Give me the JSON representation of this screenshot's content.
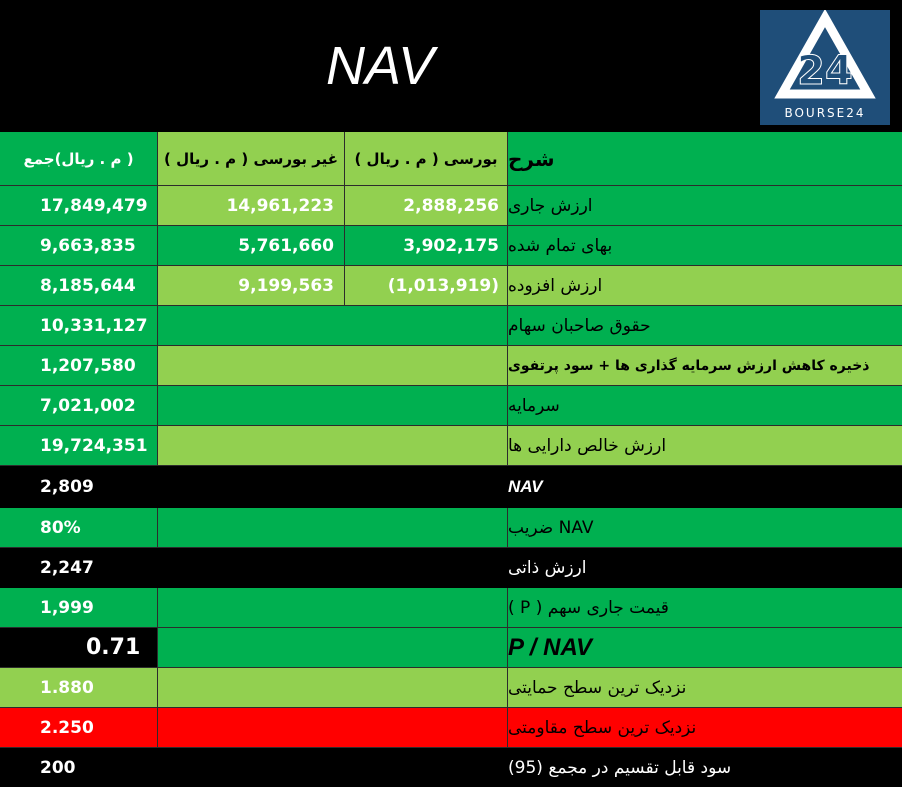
{
  "title": "NAV",
  "logo": {
    "text": "BOURSE24",
    "mark": "24"
  },
  "header": {
    "desc": "شرح",
    "bourse": "بورسی ( م . ریال )",
    "non_bourse": "غیر بورسی ( م . ریال )",
    "total": "( م . ریال)جمع"
  },
  "rows": [
    {
      "desc": "ارزش جاری",
      "bourse": "2,888,256",
      "non_bourse": "14,961,223",
      "total": "17,849,479"
    },
    {
      "desc": "بهای تمام شده",
      "bourse": "3,902,175",
      "non_bourse": "5,761,660",
      "total": "9,663,835"
    },
    {
      "desc": "ارزش افزوده",
      "bourse": "(1,013,919)",
      "non_bourse": "9,199,563",
      "total": "8,185,644"
    },
    {
      "desc": "حقوق صاحبان سهام",
      "total": "10,331,127"
    },
    {
      "desc": "ذخیره کاهش ارزش سرمایه گذاری ها + سود پرتفوی",
      "total": "1,207,580"
    },
    {
      "desc": "سرمایه",
      "total": "7,021,002"
    },
    {
      "desc": "ارزش خالص دارایی ها",
      "total": "19,724,351"
    },
    {
      "desc": "NAV",
      "total": "2,809"
    },
    {
      "desc": "NAV ضریب",
      "total": "80%"
    },
    {
      "desc": "ارزش ذاتی",
      "total": "2,247"
    },
    {
      "desc": "قیمت جاری سهم ( P )",
      "total": "1,999"
    },
    {
      "desc": "P / NAV",
      "total": "0.71"
    },
    {
      "desc": "نزدیک ترین سطح حمایتی",
      "total": "1.880"
    },
    {
      "desc": "نزدیک ترین سطح مقاومتی",
      "total": "2.250"
    },
    {
      "desc": "سود قابل تقسیم در مجمع (95)",
      "total": "200"
    }
  ],
  "colors": {
    "dark_green": "#00b050",
    "light_green": "#92d050",
    "red": "#ff0000",
    "black": "#000000",
    "logo_blue": "#1f4e79"
  }
}
